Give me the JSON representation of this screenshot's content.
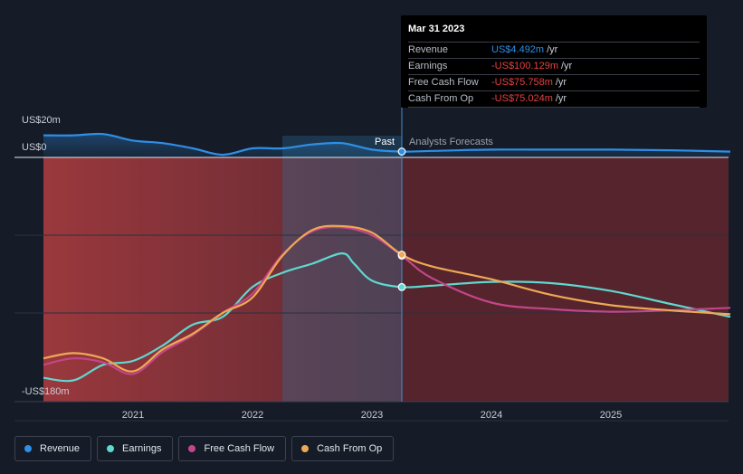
{
  "chart_data": {
    "type": "line",
    "title": "",
    "y_axis": {
      "top_label": "US$20m",
      "zero_label": "US$0",
      "bottom_label": "-US$180m",
      "ylim": [
        -180,
        20
      ]
    },
    "x_ticks": [
      "2021",
      "2022",
      "2023",
      "2024",
      "2025"
    ],
    "regions": {
      "past_label": "Past",
      "forecast_label": "Analysts Forecasts",
      "divider_date": "2023.25"
    },
    "series": [
      {
        "name": "Revenue",
        "color": "#2e8fe6",
        "x": [
          2020.25,
          2020.5,
          2020.75,
          2021.0,
          2021.25,
          2021.5,
          2021.75,
          2022.0,
          2022.25,
          2022.5,
          2022.75,
          2023.0,
          2023.25,
          2023.5,
          2024.0,
          2024.5,
          2025.0,
          2025.5,
          2026.0
        ],
        "y": [
          17,
          17,
          18,
          13,
          11,
          7,
          2,
          7,
          7,
          10,
          11,
          6,
          4.5,
          5,
          6,
          6,
          6,
          5.5,
          4.5
        ]
      },
      {
        "name": "Earnings",
        "color": "#5fd8cf",
        "x": [
          2020.25,
          2020.5,
          2020.75,
          2021.0,
          2021.25,
          2021.5,
          2021.75,
          2022.0,
          2022.25,
          2022.5,
          2022.75,
          2022.85,
          2023.0,
          2023.25,
          2023.5,
          2024.0,
          2024.5,
          2025.0,
          2025.5,
          2026.0
        ],
        "y": [
          -170,
          -172,
          -160,
          -157,
          -145,
          -129,
          -123,
          -100,
          -89,
          -82,
          -74,
          -82,
          -95,
          -100,
          -99,
          -96,
          -97,
          -103,
          -113,
          -123
        ]
      },
      {
        "name": "Free Cash Flow",
        "color": "#c4458b",
        "x": [
          2020.25,
          2020.5,
          2020.75,
          2021.0,
          2021.25,
          2021.5,
          2021.75,
          2022.0,
          2022.25,
          2022.5,
          2022.75,
          2023.0,
          2023.25,
          2023.5,
          2024.0,
          2024.5,
          2025.0,
          2025.5,
          2026.0
        ],
        "y": [
          -160,
          -155,
          -158,
          -167,
          -150,
          -137,
          -120,
          -105,
          -75,
          -57,
          -54,
          -60,
          -75.8,
          -93,
          -112,
          -117,
          -119,
          -118,
          -116
        ]
      },
      {
        "name": "Cash From Op",
        "color": "#eda954",
        "x": [
          2020.25,
          2020.5,
          2020.75,
          2021.0,
          2021.25,
          2021.5,
          2021.75,
          2022.0,
          2022.25,
          2022.5,
          2022.75,
          2023.0,
          2023.25,
          2023.5,
          2024.0,
          2024.5,
          2025.0,
          2025.5,
          2026.0
        ],
        "y": [
          -155,
          -151,
          -155,
          -165,
          -148,
          -136,
          -120,
          -108,
          -76,
          -56,
          -53,
          -58,
          -75.0,
          -84,
          -94,
          -106,
          -114,
          -118,
          -121
        ]
      }
    ]
  },
  "tooltip": {
    "date": "Mar 31 2023",
    "rows": [
      {
        "label": "Revenue",
        "value": "US$4.492m",
        "unit": "/yr",
        "color": "#2e8fe6"
      },
      {
        "label": "Earnings",
        "value": "-US$100.129m",
        "unit": "/yr",
        "color": "#ea3f3f"
      },
      {
        "label": "Free Cash Flow",
        "value": "-US$75.758m",
        "unit": "/yr",
        "color": "#ea3f3f"
      },
      {
        "label": "Cash From Op",
        "value": "-US$75.024m",
        "unit": "/yr",
        "color": "#ea3f3f"
      }
    ]
  },
  "legend": [
    {
      "label": "Revenue",
      "color": "#2e8fe6"
    },
    {
      "label": "Earnings",
      "color": "#5fd8cf"
    },
    {
      "label": "Free Cash Flow",
      "color": "#c4458b"
    },
    {
      "label": "Cash From Op",
      "color": "#eda954"
    }
  ]
}
